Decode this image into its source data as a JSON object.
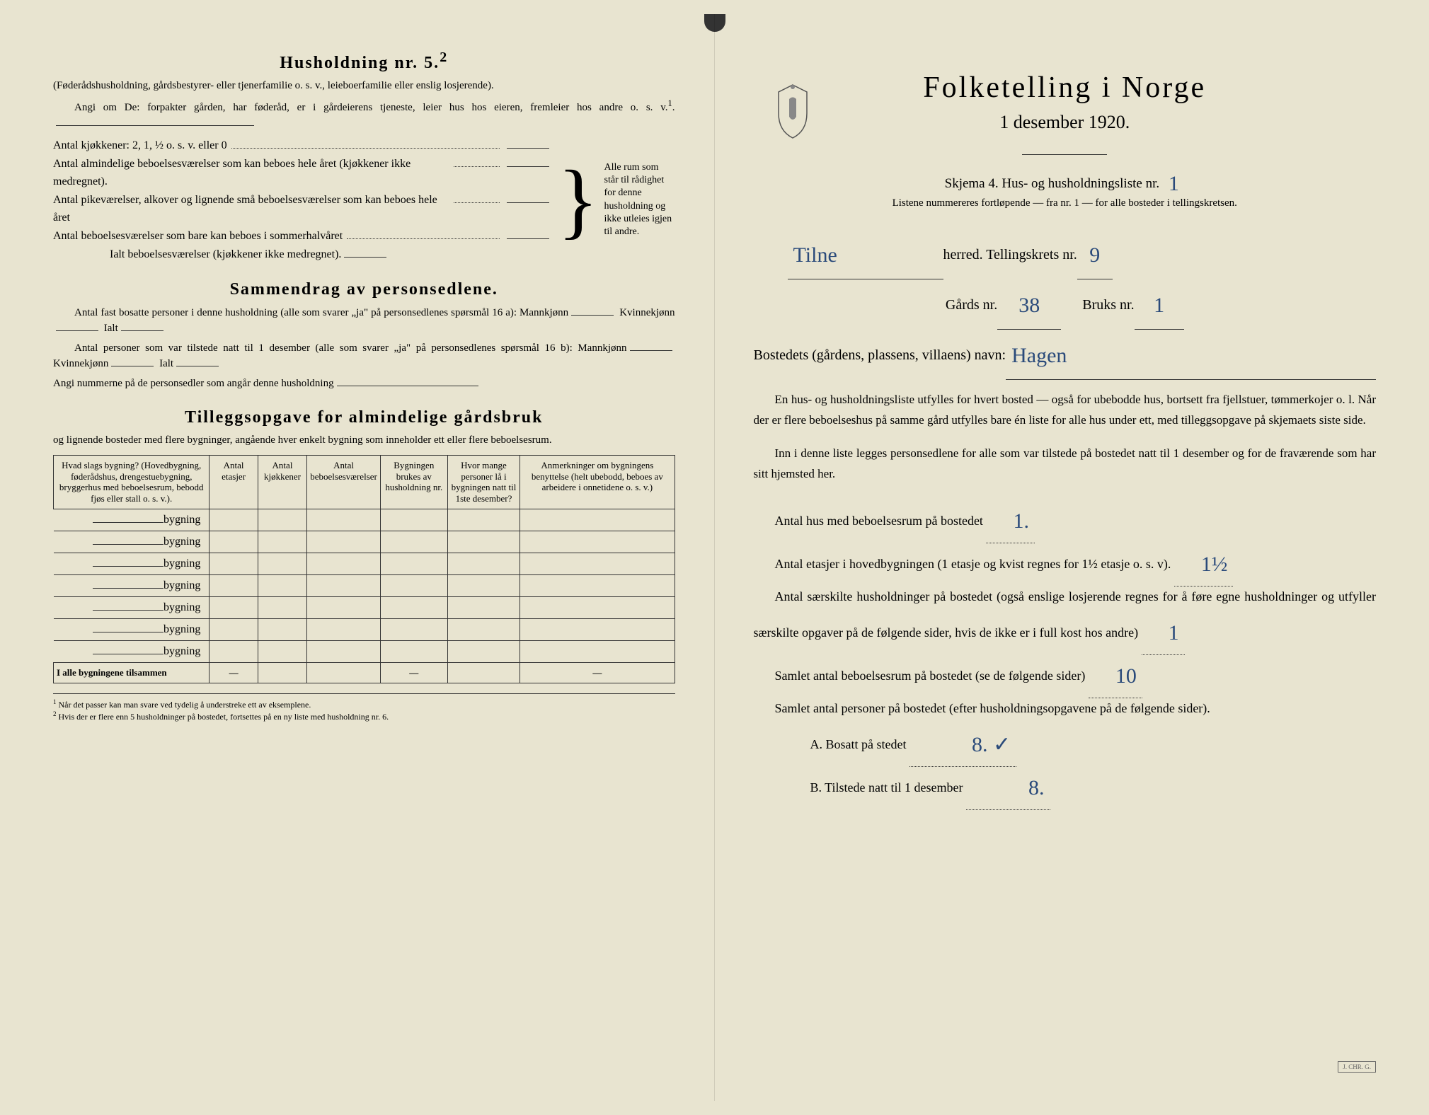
{
  "left": {
    "title": "Husholdning nr. 5.",
    "title_sup": "2",
    "intro1": "(Føderådshusholdning, gårdsbestyrer- eller tjenerfamilie o. s. v., leieboerfamilie eller enslig losjerende).",
    "intro2": "Angi om De: forpakter gården, har føderåd, er i gårdeierens tjeneste, leier hus hos eieren, fremleier hos andre o. s. v.",
    "intro2_sup": "1",
    "kitchens": "Antal kjøkkener: 2, 1, ½ o. s. v. eller 0",
    "rooms1": "Antal almindelige beboelsesværelser som kan beboes hele året (kjøkkener ikke medregnet).",
    "rooms2": "Antal pikeværelser, alkover og lignende små beboelsesværelser som kan beboes hele året",
    "rooms3": "Antal beboelsesværelser som bare kan beboes i sommerhalvåret",
    "rooms_total": "Ialt beboelsesværelser (kjøkkener ikke medregnet).",
    "brace_note": "Alle rum som står til rådighet for denne husholdning og ikke utleies igjen til andre.",
    "sammendrag_title": "Sammendrag av personsedlene.",
    "sam1": "Antal fast bosatte personer i denne husholdning (alle som svarer „ja\" på personsedlenes spørsmål 16 a): Mannkjønn",
    "sam1b": "Kvinnekjønn",
    "sam1c": "Ialt",
    "sam2": "Antal personer som var tilstede natt til 1 desember (alle som svarer „ja\" på personsedlenes spørsmål 16 b): Mannkjønn",
    "sam2b": "Kvinnekjønn",
    "sam2c": "Ialt",
    "sam3": "Angi nummerne på de personsedler som angår denne husholdning",
    "tillegg_title": "Tilleggsopgave for almindelige gårdsbruk",
    "tillegg_sub": "og lignende bosteder med flere bygninger, angående hver enkelt bygning som inneholder ett eller flere beboelsesrum.",
    "table": {
      "h1": "Hvad slags bygning?\n(Hovedbygning, føderådshus, drengestuebygning, bryggerhus med beboelsesrum, bebodd fjøs eller stall o. s. v.).",
      "h2": "Antal etasjer",
      "h3": "Antal kjøkkener",
      "h4": "Antal beboelsesværelser",
      "h5": "Bygningen brukes av husholdning nr.",
      "h6": "Hvor mange personer lå i bygningen natt til 1ste desember?",
      "h7": "Anmerkninger om bygningens benyttelse (helt ubebodd, beboes av arbeidere i onnetidene o. s. v.)",
      "row_label": "bygning",
      "total": "I alle bygningene tilsammen"
    },
    "footnote1": "Når det passer kan man svare ved tydelig å understreke ett av eksemplene.",
    "footnote2": "Hvis der er flere enn 5 husholdninger på bostedet, fortsettes på en ny liste med husholdning nr. 6."
  },
  "right": {
    "main_title": "Folketelling i Norge",
    "subtitle": "1 desember 1920.",
    "skjema": "Skjema 4.  Hus- og husholdningsliste nr.",
    "skjema_nr": "1",
    "skjema_note": "Listene nummereres fortløpende — fra nr. 1 — for alle bosteder i tellingskretsen.",
    "herred_label": "herred.  Tellingskrets nr.",
    "herred_value": "Tilne",
    "krets_nr": "9",
    "gards_label": "Gårds nr.",
    "gards_nr": "38",
    "bruks_label": "Bruks nr.",
    "bruks_nr": "1",
    "bosted_label": "Bostedets (gårdens, plassens, villaens) navn:",
    "bosted_value": "Hagen",
    "para1": "En hus- og husholdningsliste utfylles for hvert bosted — også for ubebodde hus, bortsett fra fjellstuer, tømmerkojer o. l. Når der er flere beboelseshus på samme gård utfylles bare én liste for alle hus under ett, med tilleggsopgave på skjemaets siste side.",
    "para2": "Inn i denne liste legges personsedlene for alle som var tilstede på bostedet natt til 1 desember og for de fraværende som har sitt hjemsted her.",
    "q1_label": "Antal hus med beboelsesrum på bostedet",
    "q1_value": "1.",
    "q2_label": "Antal etasjer i hovedbygningen (1 etasje og kvist regnes for 1½ etasje o. s. v).",
    "q2_value": "1½",
    "q3_label": "Antal særskilte husholdninger på bostedet (også enslige losjerende regnes for å føre egne husholdninger og utfyller særskilte opgaver på de følgende sider, hvis de ikke er i full kost hos andre)",
    "q3_value": "1",
    "q4_label": "Samlet antal beboelsesrum på bostedet (se de følgende sider)",
    "q4_value": "10",
    "q5_label": "Samlet antal personer på bostedet (efter husholdningsopgavene på de følgende sider).",
    "qA_label": "A.  Bosatt på stedet",
    "qA_value": "8. ✓",
    "qB_label": "B.  Tilstede natt til 1 desember",
    "qB_value": "8.",
    "stamp": "J. CHR. G."
  },
  "colors": {
    "paper": "#e8e4d0",
    "ink": "#1a1a1a",
    "handwriting": "#2a4a7a"
  }
}
